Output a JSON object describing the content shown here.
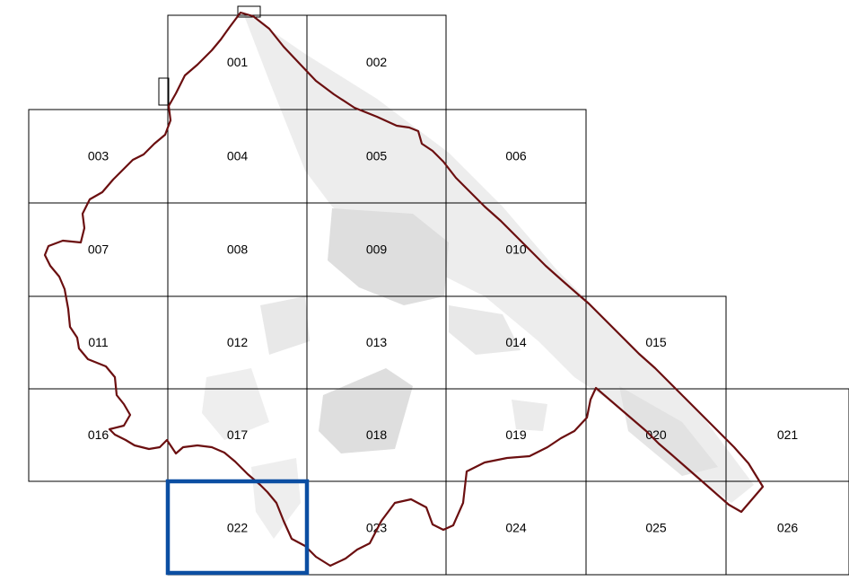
{
  "tiles": [
    {
      "label": "001"
    },
    {
      "label": "002"
    },
    {
      "label": "003"
    },
    {
      "label": "004"
    },
    {
      "label": "005"
    },
    {
      "label": "006"
    },
    {
      "label": "007"
    },
    {
      "label": "008"
    },
    {
      "label": "009"
    },
    {
      "label": "010"
    },
    {
      "label": "011"
    },
    {
      "label": "012"
    },
    {
      "label": "013"
    },
    {
      "label": "014"
    },
    {
      "label": "015"
    },
    {
      "label": "016"
    },
    {
      "label": "017"
    },
    {
      "label": "018"
    },
    {
      "label": "019"
    },
    {
      "label": "020"
    },
    {
      "label": "021"
    },
    {
      "label": "022"
    },
    {
      "label": "023"
    },
    {
      "label": "024"
    },
    {
      "label": "025"
    },
    {
      "label": "026"
    }
  ],
  "selected_tile": "022",
  "colors": {
    "grid": "#000000",
    "boundary": "#6b0f10",
    "urban": "#dedede",
    "highlight": "#0b4ea2"
  }
}
